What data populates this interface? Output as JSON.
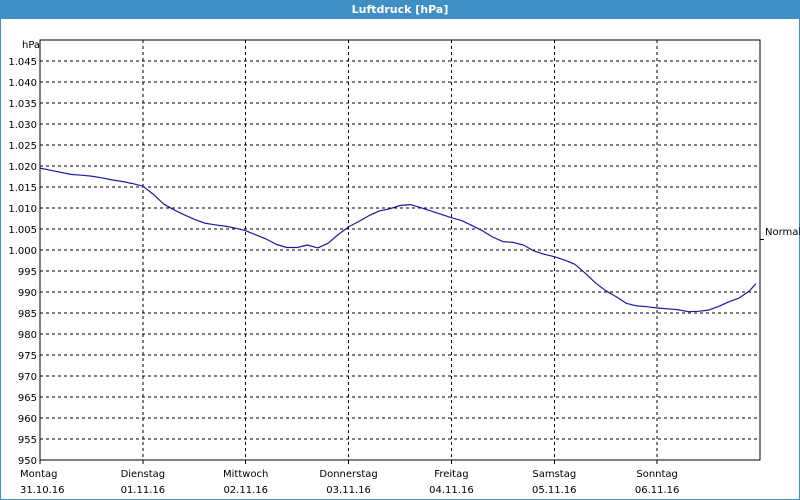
{
  "window": {
    "title": "Luftdruck [hPa]"
  },
  "chart_data": {
    "type": "line",
    "title": "Luftdruck [hPa]",
    "ylabel": "hPa",
    "xlabel": "",
    "ylim": [
      950,
      1050
    ],
    "xlim": [
      0,
      7
    ],
    "yticks": [
      {
        "value": 1045,
        "label": "1.045"
      },
      {
        "value": 1040,
        "label": "1.040"
      },
      {
        "value": 1035,
        "label": "1.035"
      },
      {
        "value": 1030,
        "label": "1.030"
      },
      {
        "value": 1025,
        "label": "1.025"
      },
      {
        "value": 1020,
        "label": "1.020"
      },
      {
        "value": 1015,
        "label": "1.015"
      },
      {
        "value": 1010,
        "label": "1.010"
      },
      {
        "value": 1005,
        "label": "1.005"
      },
      {
        "value": 1000,
        "label": "1.000"
      },
      {
        "value": 995,
        "label": "995"
      },
      {
        "value": 990,
        "label": "990"
      },
      {
        "value": 985,
        "label": "985"
      },
      {
        "value": 980,
        "label": "980"
      },
      {
        "value": 975,
        "label": "975"
      },
      {
        "value": 970,
        "label": "970"
      },
      {
        "value": 965,
        "label": "965"
      },
      {
        "value": 960,
        "label": "960"
      },
      {
        "value": 955,
        "label": "955"
      },
      {
        "value": 950,
        "label": "950"
      }
    ],
    "xticks": [
      {
        "value": 0,
        "day": "Montag",
        "date": "31.10.16"
      },
      {
        "value": 1,
        "day": "Dienstag",
        "date": "01.11.16"
      },
      {
        "value": 2,
        "day": "Mittwoch",
        "date": "02.11.16"
      },
      {
        "value": 3,
        "day": "Donnerstag",
        "date": "03.11.16"
      },
      {
        "value": 4,
        "day": "Freitag",
        "date": "04.11.16"
      },
      {
        "value": 5,
        "day": "Samstag",
        "date": "05.11.16"
      },
      {
        "value": 6,
        "day": "Sonntag",
        "date": "06.11.16"
      }
    ],
    "grid": true,
    "reference_line": {
      "value": 1002.5,
      "label": "Normal"
    },
    "series": [
      {
        "color": "#1a1aa6",
        "x": [
          0,
          0.1,
          0.2,
          0.3,
          0.4,
          0.5,
          0.6,
          0.7,
          0.8,
          0.9,
          1.0,
          1.1,
          1.2,
          1.3,
          1.4,
          1.5,
          1.6,
          1.7,
          1.8,
          1.9,
          2.0,
          2.1,
          2.2,
          2.3,
          2.4,
          2.5,
          2.6,
          2.7,
          2.8,
          2.9,
          3.0,
          3.1,
          3.2,
          3.3,
          3.4,
          3.5,
          3.6,
          3.7,
          3.8,
          3.9,
          4.0,
          4.1,
          4.2,
          4.3,
          4.4,
          4.5,
          4.6,
          4.7,
          4.8,
          4.9,
          5.0,
          5.1,
          5.2,
          5.3,
          5.4,
          5.5,
          5.6,
          5.7,
          5.8,
          5.9,
          6.0,
          6.1,
          6.2,
          6.3,
          6.4,
          6.5,
          6.6,
          6.7,
          6.8,
          6.9,
          6.96
        ],
        "y": [
          1019.5,
          1019.0,
          1018.5,
          1018.0,
          1017.8,
          1017.6,
          1017.2,
          1016.7,
          1016.3,
          1015.8,
          1015.2,
          1013.3,
          1011.0,
          1009.6,
          1008.4,
          1007.3,
          1006.4,
          1006.0,
          1005.7,
          1005.2,
          1004.6,
          1003.6,
          1002.6,
          1001.3,
          1000.6,
          1000.6,
          1001.2,
          1000.5,
          1001.6,
          1003.7,
          1005.5,
          1006.8,
          1008.2,
          1009.3,
          1009.8,
          1010.6,
          1010.8,
          1010.1,
          1009.3,
          1008.5,
          1007.7,
          1007.0,
          1005.8,
          1004.6,
          1003.1,
          1002.0,
          1001.8,
          1001.2,
          999.8,
          999.0,
          998.4,
          997.6,
          996.6,
          994.5,
          992.2,
          990.3,
          988.9,
          987.3,
          986.7,
          986.5,
          986.2,
          986.0,
          985.8,
          985.3,
          985.4,
          985.7,
          986.6,
          987.7,
          988.6,
          990.3,
          992.0
        ]
      }
    ]
  }
}
